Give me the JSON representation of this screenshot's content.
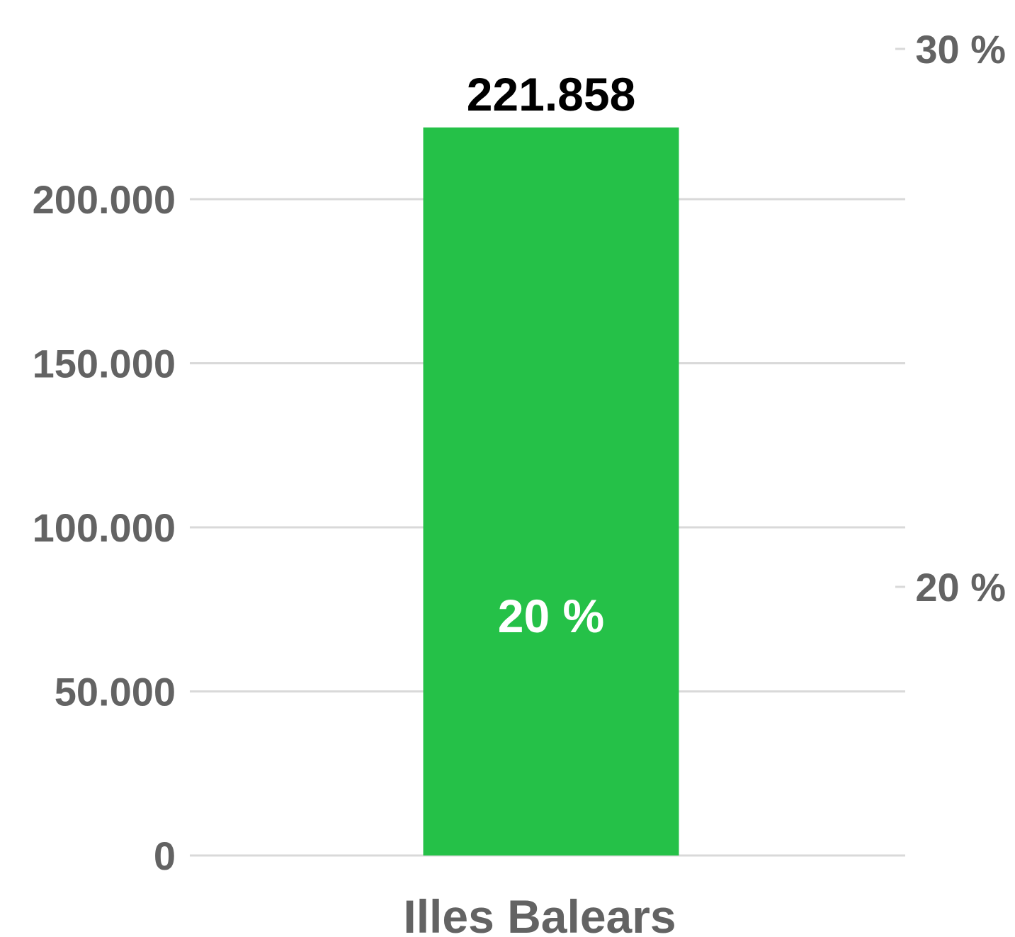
{
  "chart_data": {
    "type": "bar",
    "categories": [
      "Illes Balears"
    ],
    "values": [
      221858
    ],
    "value_labels": [
      "221.858"
    ],
    "inner_labels": [
      "20 %"
    ],
    "secondary_values": [
      20
    ],
    "ylim": [
      0,
      221858
    ],
    "y_ticks": [
      0,
      50000,
      100000,
      150000,
      200000
    ],
    "y_tick_labels": [
      "0",
      "50.000",
      "100.000",
      "150.000",
      "200.000"
    ],
    "y2_ticks": [
      20,
      30
    ],
    "y2_tick_labels": [
      "20 %",
      "30 %"
    ],
    "grid": true,
    "legend": "none",
    "colors": {
      "bar": "#25c148",
      "grid": "#d9d9d9",
      "tick_text": "#636363",
      "value_text": "#000000",
      "inner_text": "#ffffff"
    }
  }
}
